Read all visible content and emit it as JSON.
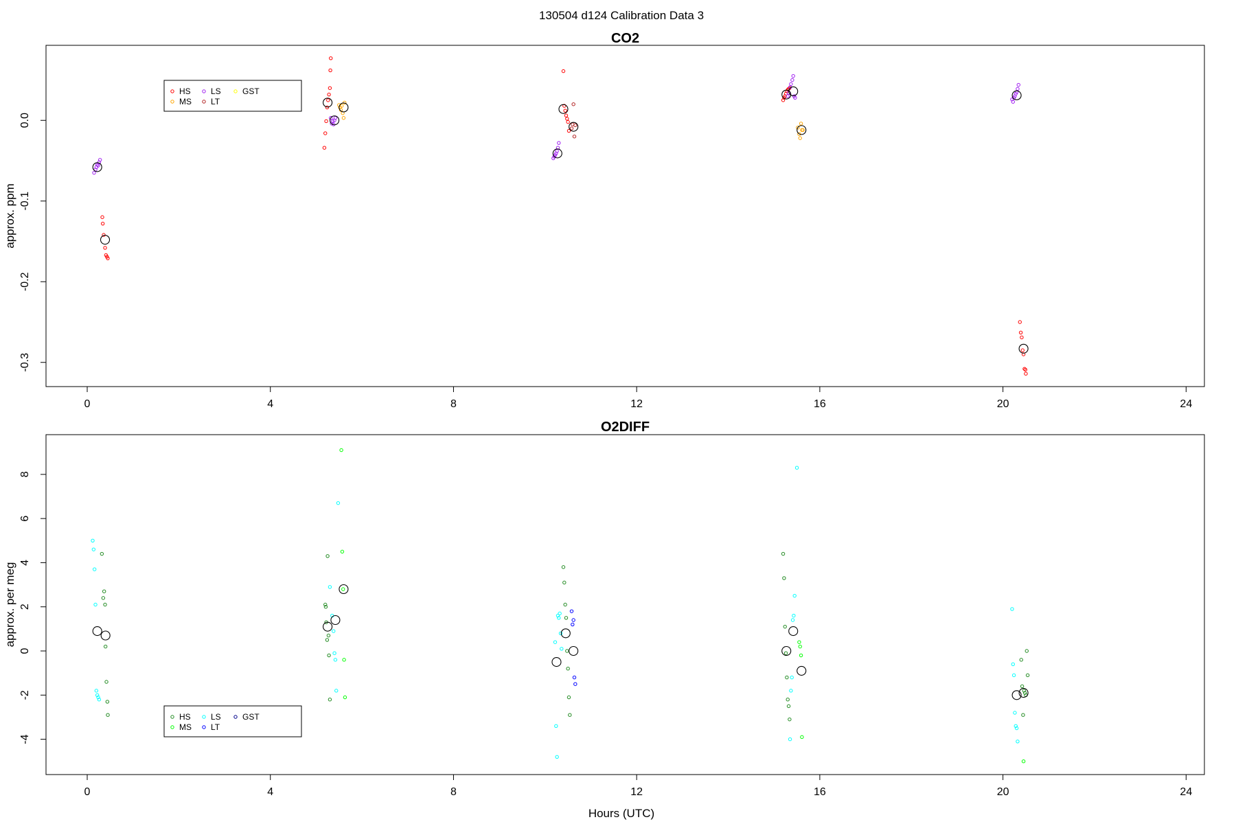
{
  "figure": {
    "suptitle": "130504   d124   Calibration Data 3",
    "xlabel": "Hours (UTC)"
  },
  "chart_data": [
    {
      "type": "scatter",
      "title": "CO2",
      "xlabel": "Hours (UTC)",
      "ylabel": "approx. ppm",
      "xlim": [
        -0.9,
        24.4
      ],
      "ylim": [
        -0.33,
        0.093
      ],
      "xticks": [
        0,
        4,
        8,
        12,
        16,
        20,
        24
      ],
      "yticks": [
        0.0,
        -0.1,
        -0.2,
        -0.3
      ],
      "ytick_labels": [
        "0.0",
        "-0.1",
        "-0.2",
        "-0.3"
      ],
      "grid": false,
      "legend": {
        "placement": "top-left",
        "ncol": 3,
        "entries": [
          {
            "name": "HS",
            "color": "#ff0000"
          },
          {
            "name": "MS",
            "color": "#ffa500"
          },
          {
            "name": "LS",
            "color": "#a020f0"
          },
          {
            "name": "LT",
            "color": "#b22222"
          },
          {
            "name": "GST",
            "color": "#ffff00"
          }
        ]
      },
      "series": [
        {
          "name": "HS",
          "color": "#ff0000",
          "points": [
            [
              0.33,
              -0.12
            ],
            [
              0.34,
              -0.128
            ],
            [
              0.36,
              -0.142
            ],
            [
              0.39,
              -0.158
            ],
            [
              0.41,
              -0.167
            ],
            [
              0.43,
              -0.169
            ],
            [
              0.45,
              -0.171
            ],
            [
              5.18,
              -0.034
            ],
            [
              5.2,
              -0.016
            ],
            [
              5.22,
              -0.001
            ],
            [
              5.24,
              0.016
            ],
            [
              5.26,
              0.025
            ],
            [
              5.28,
              0.032
            ],
            [
              5.3,
              0.04
            ],
            [
              5.31,
              0.062
            ],
            [
              5.32,
              0.077
            ],
            [
              10.4,
              0.061
            ],
            [
              10.42,
              0.018
            ],
            [
              10.44,
              0.012
            ],
            [
              10.46,
              0.006
            ],
            [
              10.48,
              0.002
            ],
            [
              10.5,
              -0.002
            ],
            [
              10.52,
              -0.013
            ],
            [
              15.2,
              0.025
            ],
            [
              15.22,
              0.028
            ],
            [
              15.24,
              0.03
            ],
            [
              15.26,
              0.033
            ],
            [
              15.28,
              0.036
            ],
            [
              15.3,
              0.038
            ],
            [
              15.32,
              0.039
            ],
            [
              15.34,
              0.04
            ],
            [
              20.37,
              -0.25
            ],
            [
              20.39,
              -0.263
            ],
            [
              20.41,
              -0.269
            ],
            [
              20.43,
              -0.285
            ],
            [
              20.45,
              -0.29
            ],
            [
              20.47,
              -0.308
            ],
            [
              20.49,
              -0.309
            ],
            [
              20.5,
              -0.314
            ]
          ]
        },
        {
          "name": "MS",
          "color": "#ffa500",
          "points": [
            [
              5.5,
              0.019
            ],
            [
              5.52,
              0.016
            ],
            [
              5.54,
              0.013
            ],
            [
              5.56,
              0.018
            ],
            [
              5.58,
              0.009
            ],
            [
              5.6,
              0.003
            ],
            [
              5.62,
              0.022
            ],
            [
              15.52,
              -0.009
            ],
            [
              15.55,
              -0.017
            ],
            [
              15.57,
              -0.022
            ],
            [
              15.59,
              -0.004
            ],
            [
              15.61,
              -0.012
            ],
            [
              15.63,
              -0.012
            ]
          ]
        },
        {
          "name": "LS",
          "color": "#a020f0",
          "points": [
            [
              0.15,
              -0.065
            ],
            [
              0.18,
              -0.061
            ],
            [
              0.2,
              -0.058
            ],
            [
              0.22,
              -0.055
            ],
            [
              0.24,
              -0.056
            ],
            [
              0.26,
              -0.052
            ],
            [
              0.28,
              -0.049
            ],
            [
              5.32,
              0.003
            ],
            [
              5.34,
              -0.004
            ],
            [
              5.36,
              -0.001
            ],
            [
              5.38,
              -0.005
            ],
            [
              5.4,
              0.0
            ],
            [
              5.42,
              0.003
            ],
            [
              10.18,
              -0.047
            ],
            [
              10.2,
              -0.045
            ],
            [
              10.22,
              -0.043
            ],
            [
              10.24,
              -0.041
            ],
            [
              10.26,
              -0.038
            ],
            [
              10.28,
              -0.034
            ],
            [
              10.3,
              -0.028
            ],
            [
              15.3,
              0.03
            ],
            [
              15.32,
              0.034
            ],
            [
              15.35,
              0.041
            ],
            [
              15.37,
              0.045
            ],
            [
              15.4,
              0.05
            ],
            [
              15.42,
              0.055
            ],
            [
              15.44,
              0.03
            ],
            [
              15.46,
              0.028
            ],
            [
              20.2,
              0.026
            ],
            [
              20.22,
              0.023
            ],
            [
              20.24,
              0.028
            ],
            [
              20.26,
              0.03
            ],
            [
              20.28,
              0.033
            ],
            [
              20.3,
              0.035
            ],
            [
              20.32,
              0.039
            ],
            [
              20.34,
              0.044
            ]
          ]
        },
        {
          "name": "LT",
          "color": "#b22222",
          "points": [
            [
              10.58,
              -0.01
            ],
            [
              10.6,
              -0.005
            ],
            [
              10.62,
              0.02
            ],
            [
              10.64,
              -0.02
            ],
            [
              10.66,
              -0.006
            ]
          ]
        },
        {
          "name": "GST",
          "color": "#ffff00",
          "points": []
        },
        {
          "name": "",
          "role": "mean",
          "color": "#000000",
          "points": [
            [
              0.22,
              -0.058
            ],
            [
              0.39,
              -0.148
            ],
            [
              5.25,
              0.022
            ],
            [
              5.4,
              0.0
            ],
            [
              5.6,
              0.016
            ],
            [
              10.27,
              -0.041
            ],
            [
              10.4,
              0.014
            ],
            [
              10.62,
              -0.008
            ],
            [
              15.27,
              0.032
            ],
            [
              15.42,
              0.036
            ],
            [
              15.6,
              -0.012
            ],
            [
              20.3,
              0.031
            ],
            [
              20.45,
              -0.283
            ]
          ]
        }
      ]
    },
    {
      "type": "scatter",
      "title": "O2DIFF",
      "xlabel": "Hours (UTC)",
      "ylabel": "approx. per meg",
      "xlim": [
        -0.9,
        24.4
      ],
      "ylim": [
        -5.6,
        9.8
      ],
      "xticks": [
        0,
        4,
        8,
        12,
        16,
        20,
        24
      ],
      "yticks": [
        -4,
        -2,
        0,
        2,
        4,
        6,
        8
      ],
      "ytick_labels": [
        "-4",
        "-2",
        "0",
        "2",
        "4",
        "6",
        "8"
      ],
      "grid": false,
      "legend": {
        "placement": "bottom-left",
        "ncol": 3,
        "entries": [
          {
            "name": "HS",
            "color": "#228b22"
          },
          {
            "name": "MS",
            "color": "#00ff00"
          },
          {
            "name": "LS",
            "color": "#00ffff"
          },
          {
            "name": "LT",
            "color": "#0000ff"
          },
          {
            "name": "GST",
            "color": "#00008b"
          }
        ]
      },
      "series": [
        {
          "name": "HS",
          "color": "#228b22",
          "points": [
            [
              0.32,
              4.4
            ],
            [
              0.35,
              2.4
            ],
            [
              0.37,
              2.7
            ],
            [
              0.39,
              2.1
            ],
            [
              0.4,
              0.2
            ],
            [
              0.42,
              -1.4
            ],
            [
              0.44,
              -2.3
            ],
            [
              0.45,
              -2.9
            ],
            [
              5.2,
              2.1
            ],
            [
              5.21,
              2.0
            ],
            [
              5.22,
              1.3
            ],
            [
              5.24,
              0.5
            ],
            [
              5.25,
              4.3
            ],
            [
              5.27,
              0.7
            ],
            [
              5.28,
              -0.2
            ],
            [
              5.3,
              -2.2
            ],
            [
              10.4,
              3.8
            ],
            [
              10.42,
              3.1
            ],
            [
              10.44,
              2.1
            ],
            [
              10.46,
              1.5
            ],
            [
              10.48,
              0.0
            ],
            [
              10.5,
              -0.8
            ],
            [
              10.52,
              -2.1
            ],
            [
              10.54,
              -2.9
            ],
            [
              15.2,
              4.4
            ],
            [
              15.22,
              3.3
            ],
            [
              15.24,
              1.1
            ],
            [
              15.26,
              -0.1
            ],
            [
              15.28,
              -1.2
            ],
            [
              15.3,
              -2.2
            ],
            [
              15.32,
              -2.5
            ],
            [
              15.34,
              -3.1
            ],
            [
              20.4,
              -0.4
            ],
            [
              20.42,
              -1.6
            ],
            [
              20.44,
              -2.9
            ],
            [
              20.46,
              -1.8
            ],
            [
              20.48,
              -1.9
            ],
            [
              20.5,
              -2.0
            ],
            [
              20.52,
              0.0
            ],
            [
              20.54,
              -1.1
            ]
          ]
        },
        {
          "name": "MS",
          "color": "#00ff00",
          "points": [
            [
              5.55,
              9.1
            ],
            [
              5.57,
              4.5
            ],
            [
              5.59,
              2.8
            ],
            [
              5.61,
              -0.4
            ],
            [
              5.63,
              -2.1
            ],
            [
              15.55,
              0.4
            ],
            [
              15.57,
              0.2
            ],
            [
              15.59,
              -0.2
            ],
            [
              15.61,
              -3.9
            ],
            [
              20.45,
              -5.0
            ]
          ]
        },
        {
          "name": "LS",
          "color": "#00ffff",
          "points": [
            [
              0.12,
              5.0
            ],
            [
              0.14,
              4.6
            ],
            [
              0.16,
              3.7
            ],
            [
              0.18,
              2.1
            ],
            [
              0.2,
              -1.8
            ],
            [
              0.22,
              -2.0
            ],
            [
              0.24,
              -2.1
            ],
            [
              0.26,
              -2.2
            ],
            [
              5.3,
              2.9
            ],
            [
              5.35,
              1.6
            ],
            [
              5.38,
              0.9
            ],
            [
              5.4,
              -0.1
            ],
            [
              5.42,
              -0.4
            ],
            [
              5.44,
              -1.8
            ],
            [
              5.48,
              6.7
            ],
            [
              10.22,
              0.4
            ],
            [
              10.24,
              -3.4
            ],
            [
              10.26,
              -4.8
            ],
            [
              10.28,
              1.6
            ],
            [
              10.3,
              1.5
            ],
            [
              10.32,
              1.7
            ],
            [
              10.34,
              0.8
            ],
            [
              10.36,
              0.1
            ],
            [
              15.5,
              8.3
            ],
            [
              15.45,
              2.5
            ],
            [
              15.43,
              1.6
            ],
            [
              15.41,
              1.4
            ],
            [
              15.39,
              -1.2
            ],
            [
              15.37,
              -1.8
            ],
            [
              15.35,
              -4.0
            ],
            [
              20.2,
              1.9
            ],
            [
              20.22,
              -0.6
            ],
            [
              20.24,
              -1.1
            ],
            [
              20.26,
              -2.8
            ],
            [
              20.28,
              -3.4
            ],
            [
              20.3,
              -3.5
            ],
            [
              20.32,
              -4.1
            ]
          ]
        },
        {
          "name": "LT",
          "color": "#0000ff",
          "points": [
            [
              10.58,
              1.8
            ],
            [
              10.6,
              1.2
            ],
            [
              10.62,
              1.4
            ],
            [
              10.64,
              -1.2
            ],
            [
              10.66,
              -1.5
            ]
          ]
        },
        {
          "name": "GST",
          "color": "#00008b",
          "points": []
        },
        {
          "name": "",
          "role": "mean",
          "color": "#000000",
          "points": [
            [
              0.22,
              0.9
            ],
            [
              0.4,
              0.7
            ],
            [
              5.25,
              1.1
            ],
            [
              5.42,
              1.4
            ],
            [
              5.6,
              2.8
            ],
            [
              10.25,
              -0.5
            ],
            [
              10.45,
              0.8
            ],
            [
              10.62,
              0.0
            ],
            [
              15.27,
              0.0
            ],
            [
              15.42,
              0.9
            ],
            [
              15.6,
              -0.9
            ],
            [
              20.3,
              -2.0
            ],
            [
              20.45,
              -1.9
            ]
          ]
        }
      ]
    }
  ]
}
